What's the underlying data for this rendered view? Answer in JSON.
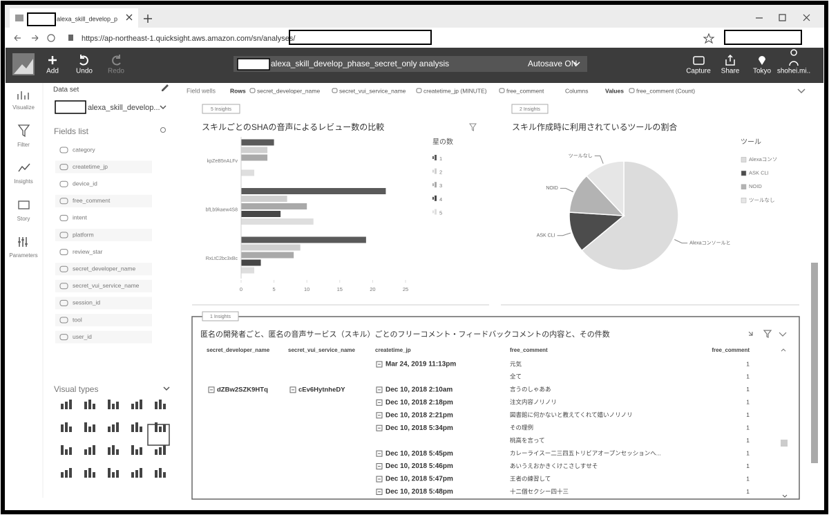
{
  "browser": {
    "tab_title": "alexa_skill_develop_p",
    "url": "https://ap-northeast-1.quicksight.aws.amazon.com/sn/analyses/"
  },
  "toolbar": {
    "add": "Add",
    "undo": "Undo",
    "redo": "Redo",
    "analysis_name": "alexa_skill_develop_phase_secret_only analysis",
    "autosave": "Autosave ON",
    "capture": "Capture",
    "share": "Share",
    "region": "Tokyo",
    "user": "shohei.mi.."
  },
  "nav": [
    "Visualize",
    "Filter",
    "Insights",
    "Story",
    "Parameters"
  ],
  "data_panel": {
    "label": "Data set",
    "dataset": "alexa_skill_develop...",
    "fields_title": "Fields list",
    "fields": [
      "category",
      "createtime_jp",
      "device_id",
      "free_comment",
      "intent",
      "platform",
      "review_star",
      "secret_developer_name",
      "secret_vui_service_name",
      "session_id",
      "tool",
      "user_id"
    ],
    "visual_types": "Visual types"
  },
  "field_wells": {
    "label": "Field wells",
    "rows_label": "Rows",
    "rows": [
      "secret_developer_name",
      "secret_vui_service_name",
      "createtime_jp (MINUTE)",
      "free_comment"
    ],
    "columns_label": "Columns",
    "values_label": "Values",
    "values": [
      "free_comment (Count)"
    ]
  },
  "chart_data": [
    {
      "type": "bar",
      "orientation": "horizontal",
      "insights": "5 Insights",
      "title": "スキルごとのSHAの音声によるレビュー数の比較",
      "legend_title": "星の数",
      "legend": "right",
      "categories": [
        "kpZeB5nALFv",
        "bfLb9kaew4S8",
        "RxLtC2bc3xBc"
      ],
      "series": [
        {
          "name": "1",
          "color": "#5a5a5a",
          "values": [
            5,
            22,
            19
          ]
        },
        {
          "name": "2",
          "color": "#cfcfcf",
          "values": [
            4,
            7,
            9
          ]
        },
        {
          "name": "3",
          "color": "#a9a9a9",
          "values": [
            4,
            10,
            8
          ]
        },
        {
          "name": "4",
          "color": "#474747",
          "values": [
            0,
            6,
            3
          ]
        },
        {
          "name": "5",
          "color": "#dedede",
          "values": [
            2,
            11,
            2
          ]
        }
      ],
      "xlim": [
        0,
        25
      ],
      "xticks": [
        0,
        5,
        10,
        15,
        20,
        25
      ]
    },
    {
      "type": "pie",
      "insights": "2 Insights",
      "title": "スキル作成時に利用されているツールの割合",
      "legend_title": "ツール",
      "legend": "right",
      "categories": [
        "Alexaコンソ",
        "ASK CLI",
        "NOID",
        "ツールなし"
      ],
      "slice_labels": [
        "Alexaコンソールと",
        "ASK CLI",
        "NOID",
        "ツールなし"
      ],
      "values": [
        64,
        12,
        12,
        12
      ],
      "colors": [
        "#dcdcdc",
        "#4c4c4c",
        "#b3b3b3",
        "#e6e6e6"
      ]
    }
  ],
  "table": {
    "insights": "1 Insights",
    "title": "匿名の開発者ごと、匿名の音声サービス（スキル）ごとのフリーコメント・フィードバックコメントの内容と、その件数",
    "headers": [
      "secret_developer_name",
      "secret_vui_service_name",
      "createtime_jp",
      "free_comment",
      "free_comment"
    ],
    "rows": [
      {
        "time": "Mar 24, 2019 11:13pm",
        "comment": "元気",
        "count": 1
      },
      {
        "comment": "全て",
        "count": 1
      },
      {
        "developer": "dZBw2SZK9HTq",
        "service": "cEv6HytnheDY",
        "time": "Dec 10, 2018 2:10am",
        "comment": "言うのしゃああ",
        "count": 1
      },
      {
        "time": "Dec 10, 2018 2:18pm",
        "comment": "注文内容ノリノリ",
        "count": 1
      },
      {
        "time": "Dec 10, 2018 2:21pm",
        "comment": "図書館に何かないと教えてくれて嬉いノリノリ",
        "count": 1
      },
      {
        "time": "Dec 10, 2018 5:34pm",
        "comment": "その理例",
        "count": 1
      },
      {
        "comment": "桃高を言って",
        "count": 1
      },
      {
        "time": "Dec 10, 2018 5:45pm",
        "comment": "カレーライスー二三四五トリビアオープンセッションへ...",
        "count": 1
      },
      {
        "time": "Dec 10, 2018 5:46pm",
        "comment": "あいうえおかきくけこさしすせそ",
        "count": 1
      },
      {
        "time": "Dec 10, 2018 5:47pm",
        "comment": "王者の練習して",
        "count": 1
      },
      {
        "time": "Dec 10, 2018 5:48pm",
        "comment": "十二個セクシー四十三",
        "count": 1
      }
    ]
  }
}
